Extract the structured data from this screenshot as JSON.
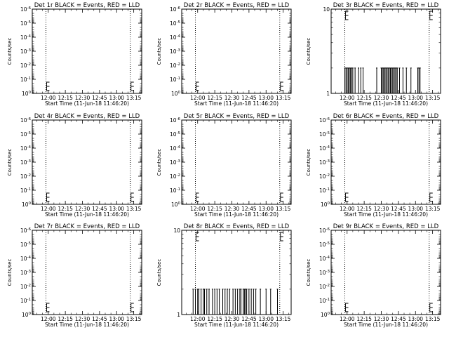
{
  "chart_data": [
    {
      "title": "Det 1r BLACK = Events, RED = LLD",
      "type": "line",
      "xlabel": "Start Time (11-Jun-18 11:46:20)",
      "ylabel": "Counts/sec",
      "xticks": [
        "12:00",
        "12:15",
        "12:30",
        "12:45",
        "13:00",
        "13:15"
      ],
      "y_scale": "log",
      "yticks": [
        "10^0",
        "10^-1",
        "10^-2",
        "10^-3",
        "10^-4",
        "10^-5",
        "10^-6"
      ],
      "ylim": [
        1,
        1e-06
      ],
      "vertical_dotted_markers": [
        "11:58",
        "13:12"
      ],
      "event_spikes": []
    },
    {
      "title": "Det 2r BLACK = Events, RED = LLD",
      "type": "line",
      "xlabel": "Start Time (11-Jun-18 11:46:20)",
      "ylabel": "Counts/sec",
      "xticks": [
        "12:00",
        "12:15",
        "12:30",
        "12:45",
        "13:00",
        "13:15"
      ],
      "y_scale": "log",
      "yticks": [
        "10^0",
        "10^-1",
        "10^-2",
        "10^-3",
        "10^-4",
        "10^-5",
        "10^-6"
      ],
      "ylim": [
        1,
        1e-06
      ],
      "vertical_dotted_markers": [
        "11:58",
        "13:12"
      ],
      "event_spikes": []
    },
    {
      "title": "Det 3r BLACK = Events, RED = LLD",
      "type": "line",
      "xlabel": "Start Time (11-Jun-18 11:46:20)",
      "ylabel": "Counts/sec",
      "xticks": [
        "12:00",
        "12:15",
        "12:30",
        "12:45",
        "13:00",
        "13:15"
      ],
      "y_scale": "log",
      "yticks": [
        "10",
        "1"
      ],
      "ylim": [
        1,
        10
      ],
      "vertical_dotted_markers": [
        "11:58",
        "13:12"
      ],
      "spike_value": 2,
      "event_spikes": [
        "11:58",
        "11:59",
        "12:00",
        "12:01",
        "12:02",
        "12:03",
        "12:04",
        "12:05",
        "12:07",
        "12:10",
        "12:12",
        "12:14",
        "12:26",
        "12:30",
        "12:31",
        "12:32",
        "12:33",
        "12:34",
        "12:35",
        "12:36",
        "12:37",
        "12:38",
        "12:39",
        "12:40",
        "12:41",
        "12:42",
        "12:43",
        "12:44",
        "12:46",
        "12:49",
        "12:52",
        "12:56",
        "13:02",
        "13:03",
        "13:04"
      ]
    },
    {
      "title": "Det 4r BLACK = Events, RED = LLD",
      "type": "line",
      "xlabel": "Start Time (11-Jun-18 11:46:20)",
      "ylabel": "Counts/sec",
      "xticks": [
        "12:00",
        "12:15",
        "12:30",
        "12:45",
        "13:00",
        "13:15"
      ],
      "y_scale": "log",
      "yticks": [
        "10^0",
        "10^-1",
        "10^-2",
        "10^-3",
        "10^-4",
        "10^-5",
        "10^-6"
      ],
      "ylim": [
        1,
        1e-06
      ],
      "vertical_dotted_markers": [
        "11:58",
        "13:12"
      ],
      "event_spikes": []
    },
    {
      "title": "Det 5r BLACK = Events, RED = LLD",
      "type": "line",
      "xlabel": "Start Time (11-Jun-18 11:46:20)",
      "ylabel": "Counts/sec",
      "xticks": [
        "12:00",
        "12:15",
        "12:30",
        "12:45",
        "13:00",
        "13:15"
      ],
      "y_scale": "log",
      "yticks": [
        "10^0",
        "10^-1",
        "10^-2",
        "10^-3",
        "10^-4",
        "10^-5",
        "10^-6"
      ],
      "ylim": [
        1,
        1e-06
      ],
      "vertical_dotted_markers": [
        "11:58",
        "13:12"
      ],
      "event_spikes": []
    },
    {
      "title": "Det 6r BLACK = Events, RED = LLD",
      "type": "line",
      "xlabel": "Start Time (11-Jun-18 11:46:20)",
      "ylabel": "Counts/sec",
      "xticks": [
        "12:00",
        "12:15",
        "12:30",
        "12:45",
        "13:00",
        "13:15"
      ],
      "y_scale": "log",
      "yticks": [
        "10^0",
        "10^-1",
        "10^-2",
        "10^-3",
        "10^-4",
        "10^-5",
        "10^-6"
      ],
      "ylim": [
        1,
        1e-06
      ],
      "vertical_dotted_markers": [
        "11:58",
        "13:12"
      ],
      "event_spikes": []
    },
    {
      "title": "Det 7r BLACK = Events, RED = LLD",
      "type": "line",
      "xlabel": "Start Time (11-Jun-18 11:46:20)",
      "ylabel": "Counts/sec",
      "xticks": [
        "12:00",
        "12:15",
        "12:30",
        "12:45",
        "13:00",
        "13:15"
      ],
      "y_scale": "log",
      "yticks": [
        "10^0",
        "10^-1",
        "10^-2",
        "10^-3",
        "10^-4",
        "10^-5",
        "10^-6"
      ],
      "ylim": [
        1,
        1e-06
      ],
      "vertical_dotted_markers": [
        "11:58",
        "13:12"
      ],
      "event_spikes": []
    },
    {
      "title": "Det 8r BLACK = Events, RED = LLD",
      "type": "line",
      "xlabel": "Start Time (11-Jun-18 11:46:20)",
      "ylabel": "Counts/sec",
      "xticks": [
        "12:00",
        "12:15",
        "12:30",
        "12:45",
        "13:00",
        "13:15"
      ],
      "y_scale": "log",
      "yticks": [
        "10",
        "1"
      ],
      "ylim": [
        1,
        10
      ],
      "vertical_dotted_markers": [
        "11:58",
        "13:12"
      ],
      "spike_value": 2,
      "event_spikes": [
        "11:56",
        "11:58",
        "12:00",
        "12:01",
        "12:03",
        "12:05",
        "12:06",
        "12:08",
        "12:10",
        "12:13",
        "12:15",
        "12:17",
        "12:19",
        "12:22",
        "12:24",
        "12:26",
        "12:28",
        "12:31",
        "12:33",
        "12:35",
        "12:37",
        "12:38",
        "12:40",
        "12:41",
        "12:42",
        "12:43",
        "12:45",
        "12:47",
        "12:49",
        "12:51",
        "12:55",
        "13:00",
        "13:04",
        "13:10"
      ]
    },
    {
      "title": "Det 9r BLACK = Events, RED = LLD",
      "type": "line",
      "xlabel": "Start Time (11-Jun-18 11:46:20)",
      "ylabel": "Counts/sec",
      "xticks": [
        "12:00",
        "12:15",
        "12:30",
        "12:45",
        "13:00",
        "13:15"
      ],
      "y_scale": "log",
      "yticks": [
        "10^0",
        "10^-1",
        "10^-2",
        "10^-3",
        "10^-4",
        "10^-5",
        "10^-6"
      ],
      "ylim": [
        1,
        1e-06
      ],
      "vertical_dotted_markers": [
        "11:58",
        "13:12"
      ],
      "event_spikes": []
    }
  ],
  "x_axis_range": [
    "11:46",
    "13:22"
  ],
  "colors": {
    "events": "#000000",
    "lld": "#ff0000",
    "background": "#ffffff"
  }
}
